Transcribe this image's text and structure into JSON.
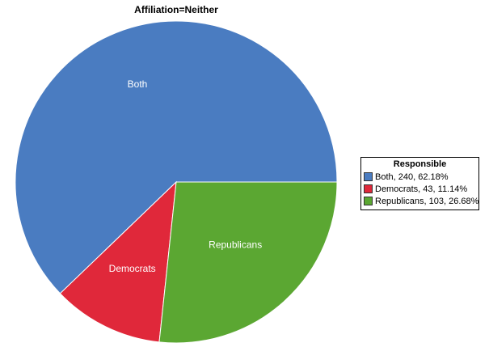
{
  "chart_data": {
    "type": "pie",
    "title": "Affiliation=Neither",
    "legend": {
      "title": "Responsible",
      "placement": "right",
      "entries": [
        "Both, 240, 62.18%",
        "Democrats, 43, 11.14%",
        "Republicans, 103, 26.68%"
      ]
    },
    "slices": [
      {
        "label": "Both",
        "value": 240,
        "percent": 62.18,
        "color": "#4a7cc1"
      },
      {
        "label": "Democrats",
        "value": 43,
        "percent": 11.14,
        "color": "#e0283a"
      },
      {
        "label": "Republicans",
        "value": 103,
        "percent": 26.68,
        "color": "#5ba732"
      }
    ]
  }
}
